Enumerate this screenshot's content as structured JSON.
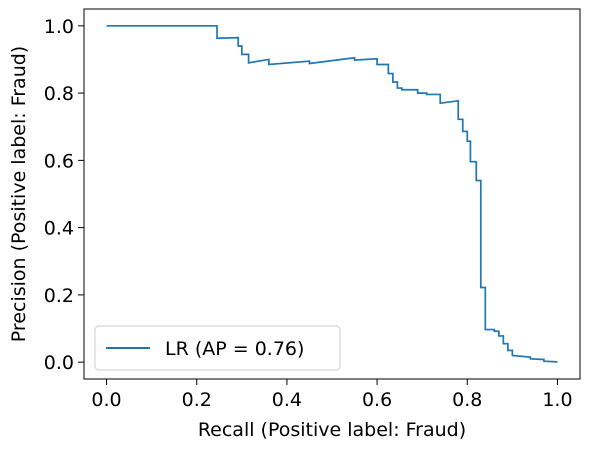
{
  "chart_data": {
    "type": "line",
    "xlabel": "Recall (Positive label: Fraud)",
    "ylabel": "Precision (Positive label: Fraud)",
    "xlim": [
      -0.05,
      1.05
    ],
    "ylim": [
      -0.05,
      1.05
    ],
    "x_ticks": [
      "0.0",
      "0.2",
      "0.4",
      "0.6",
      "0.8",
      "1.0"
    ],
    "y_ticks": [
      "0.0",
      "0.2",
      "0.4",
      "0.6",
      "0.8",
      "1.0"
    ],
    "grid": false,
    "legend_position": "lower-left",
    "series": [
      {
        "name": "LR (AP = 0.76)",
        "color": "#1f77b4",
        "drawstyle": "steps-post",
        "points": [
          [
            0.0,
            1.0
          ],
          [
            0.245,
            1.0
          ],
          [
            0.245,
            0.963
          ],
          [
            0.292,
            0.965
          ],
          [
            0.292,
            0.94
          ],
          [
            0.3,
            0.94
          ],
          [
            0.3,
            0.915
          ],
          [
            0.315,
            0.915
          ],
          [
            0.315,
            0.89
          ],
          [
            0.36,
            0.9
          ],
          [
            0.36,
            0.885
          ],
          [
            0.45,
            0.895
          ],
          [
            0.45,
            0.888
          ],
          [
            0.55,
            0.905
          ],
          [
            0.55,
            0.898
          ],
          [
            0.6,
            0.902
          ],
          [
            0.6,
            0.885
          ],
          [
            0.625,
            0.885
          ],
          [
            0.625,
            0.858
          ],
          [
            0.635,
            0.858
          ],
          [
            0.635,
            0.833
          ],
          [
            0.645,
            0.833
          ],
          [
            0.645,
            0.815
          ],
          [
            0.655,
            0.815
          ],
          [
            0.655,
            0.81
          ],
          [
            0.69,
            0.81
          ],
          [
            0.69,
            0.8
          ],
          [
            0.71,
            0.8
          ],
          [
            0.71,
            0.796
          ],
          [
            0.74,
            0.796
          ],
          [
            0.74,
            0.77
          ],
          [
            0.78,
            0.777
          ],
          [
            0.78,
            0.722
          ],
          [
            0.79,
            0.722
          ],
          [
            0.79,
            0.686
          ],
          [
            0.8,
            0.686
          ],
          [
            0.8,
            0.657
          ],
          [
            0.807,
            0.657
          ],
          [
            0.807,
            0.596
          ],
          [
            0.82,
            0.596
          ],
          [
            0.82,
            0.54
          ],
          [
            0.83,
            0.54
          ],
          [
            0.83,
            0.222
          ],
          [
            0.84,
            0.222
          ],
          [
            0.84,
            0.097
          ],
          [
            0.86,
            0.097
          ],
          [
            0.86,
            0.092
          ],
          [
            0.87,
            0.092
          ],
          [
            0.87,
            0.078
          ],
          [
            0.88,
            0.078
          ],
          [
            0.88,
            0.055
          ],
          [
            0.89,
            0.055
          ],
          [
            0.89,
            0.035
          ],
          [
            0.9,
            0.035
          ],
          [
            0.9,
            0.02
          ],
          [
            0.94,
            0.015
          ],
          [
            0.94,
            0.01
          ],
          [
            0.97,
            0.008
          ],
          [
            0.97,
            0.003
          ],
          [
            1.0,
            0.001
          ]
        ]
      }
    ]
  }
}
